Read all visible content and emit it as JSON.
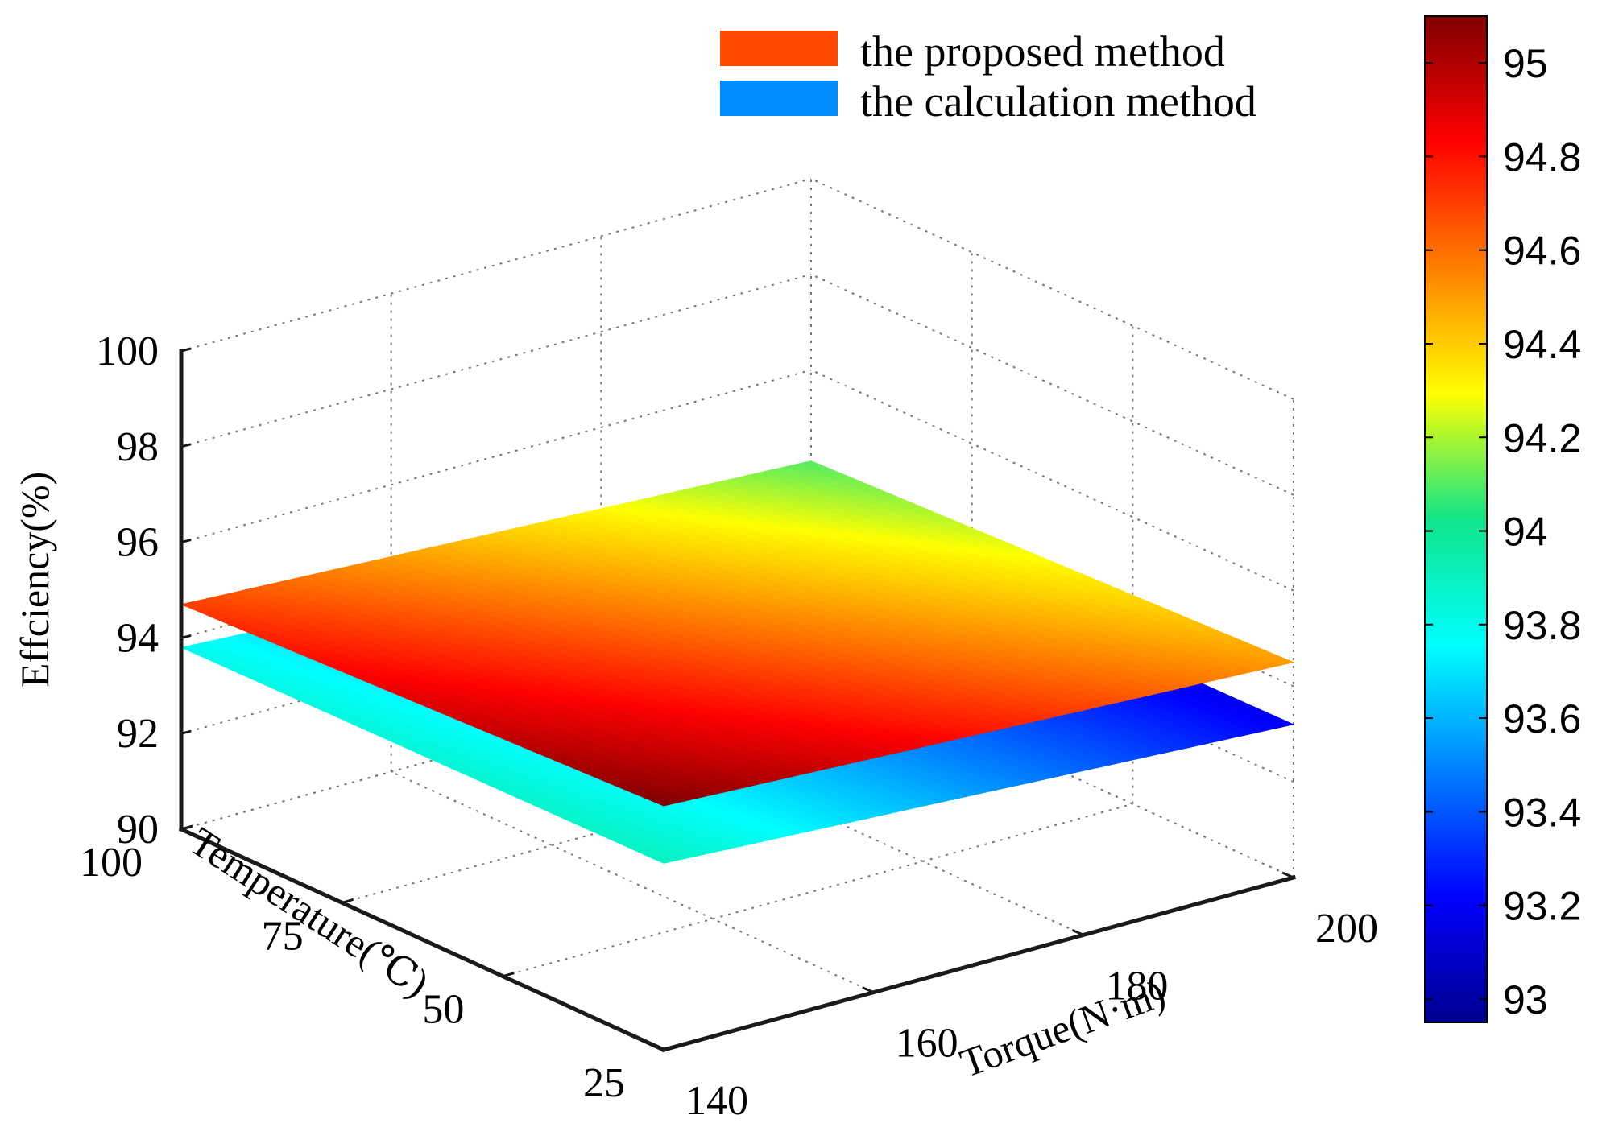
{
  "chart_data": {
    "type": "surface3d",
    "title": "",
    "zlabel": "Effciency(%)",
    "xlabel": "Torque(N·m)",
    "ylabel": "Temperature(℃)",
    "x_ticks": [
      140,
      160,
      180,
      200
    ],
    "y_ticks": [
      25,
      50,
      75,
      100
    ],
    "z_ticks": [
      90,
      92,
      94,
      96,
      98,
      100
    ],
    "xlim": [
      140,
      200
    ],
    "ylim": [
      25,
      100
    ],
    "zlim": [
      90,
      100
    ],
    "grid": true,
    "legend_position": "top",
    "series": [
      {
        "name": "the proposed method",
        "legend_color": "#ff4a00",
        "x": [
          140,
          200
        ],
        "y": [
          25,
          100
        ],
        "z_grid": [
          [
            95.1,
            94.5
          ],
          [
            94.7,
            94.1
          ]
        ],
        "z_note": "rows: Temperature 25 then 100; cols: Torque 140 then 200"
      },
      {
        "name": "the calculation method",
        "legend_color": "#008cff",
        "x": [
          140,
          200
        ],
        "y": [
          25,
          100
        ],
        "z_grid": [
          [
            93.9,
            93.2
          ],
          [
            93.8,
            93.1
          ]
        ],
        "z_note": "rows: Temperature 25 then 100; cols: Torque 140 then 200"
      }
    ],
    "colorbar": {
      "ticks": [
        93,
        93.2,
        93.4,
        93.6,
        93.8,
        94,
        94.2,
        94.4,
        94.6,
        94.8,
        95
      ],
      "range": [
        92.95,
        95.1
      ],
      "colormap": "jet"
    }
  }
}
